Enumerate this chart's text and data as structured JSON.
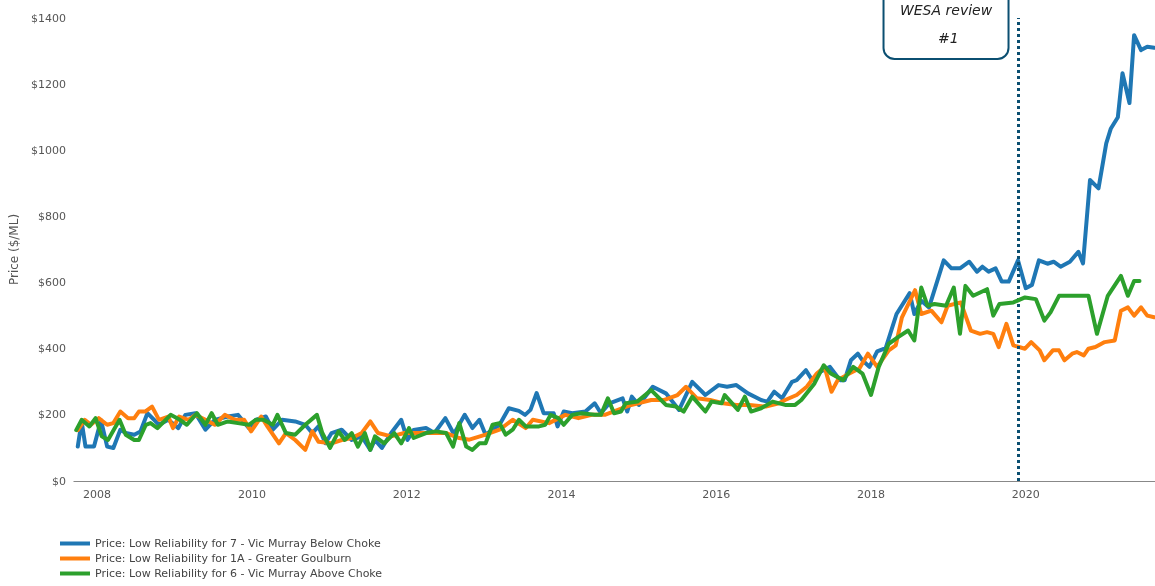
{
  "chart_data": {
    "type": "line",
    "ylabel": "Price ($/ML)",
    "xlim": [
      2007.7,
      2021.67
    ],
    "xticks": [
      2008,
      2010,
      2012,
      2014,
      2016,
      2018,
      2020
    ],
    "ylim": [
      0,
      1400
    ],
    "yticks": [
      {
        "value": 0,
        "label": "$0"
      },
      {
        "value": 200,
        "label": "$200"
      },
      {
        "value": 400,
        "label": "$400"
      },
      {
        "value": 600,
        "label": "$600"
      },
      {
        "value": 800,
        "label": "$800"
      },
      {
        "value": 1000,
        "label": "$1000"
      },
      {
        "value": 1200,
        "label": "$1200"
      },
      {
        "value": 1400,
        "label": "$1400"
      }
    ],
    "grid": false,
    "legend": "bottom left",
    "marker": "none",
    "line_style": "solid",
    "ref_lines": [
      {
        "axis": "x",
        "value": 2019.9,
        "label": "WESA review #1",
        "color": "#0b4f71",
        "line_style": "dotted"
      }
    ],
    "series": [
      {
        "name": "Price: Low Reliability for 7 - Vic Murray Below Choke",
        "color": "#1f77b4",
        "x": [
          2007.75,
          2007.8,
          2007.85,
          2007.96,
          2008.05,
          2008.13,
          2008.21,
          2008.3,
          2008.37,
          2008.48,
          2008.56,
          2008.65,
          2008.8,
          2008.92,
          2009.05,
          2009.14,
          2009.27,
          2009.4,
          2009.52,
          2009.69,
          2009.82,
          2009.96,
          2010.05,
          2010.18,
          2010.27,
          2010.39,
          2010.56,
          2010.69,
          2010.78,
          2010.86,
          2010.95,
          2011.03,
          2011.16,
          2011.29,
          2011.42,
          2011.53,
          2011.59,
          2011.68,
          2011.8,
          2011.93,
          2012.01,
          2012.09,
          2012.25,
          2012.36,
          2012.5,
          2012.61,
          2012.75,
          2012.85,
          2012.94,
          2013.02,
          2013.2,
          2013.32,
          2013.45,
          2013.53,
          2013.6,
          2013.68,
          2013.77,
          2013.9,
          2013.95,
          2014.03,
          2014.14,
          2014.31,
          2014.43,
          2014.51,
          2014.62,
          2014.79,
          2014.85,
          2014.91,
          2015.0,
          2015.18,
          2015.35,
          2015.52,
          2015.69,
          2015.86,
          2016.03,
          2016.14,
          2016.26,
          2016.41,
          2016.58,
          2016.66,
          2016.75,
          2016.85,
          2016.98,
          2017.04,
          2017.16,
          2017.24,
          2017.34,
          2017.47,
          2017.6,
          2017.66,
          2017.74,
          2017.83,
          2017.89,
          2017.98,
          2018.08,
          2018.19,
          2018.33,
          2018.5,
          2018.56,
          2018.65,
          2018.75,
          2018.94,
          2019.04,
          2019.15,
          2019.27,
          2019.37,
          2019.44,
          2019.52,
          2019.61,
          2019.69,
          2019.78,
          2019.9,
          2020.0,
          2020.08,
          2020.17,
          2020.28,
          2020.36,
          2020.45,
          2020.57,
          2020.68,
          2020.74,
          2020.83,
          2020.94,
          2021.04,
          2021.1,
          2021.19,
          2021.25,
          2021.34,
          2021.4,
          2021.49,
          2021.57,
          2021.66
        ],
        "values": [
          104,
          180,
          104,
          104,
          184,
          104,
          100,
          155,
          145,
          140,
          150,
          205,
          170,
          185,
          160,
          200,
          205,
          155,
          185,
          195,
          200,
          160,
          185,
          195,
          155,
          185,
          180,
          170,
          145,
          165,
          114,
          145,
          155,
          124,
          135,
          94,
          124,
          100,
          145,
          185,
          124,
          154,
          160,
          145,
          190,
          142,
          200,
          160,
          185,
          140,
          170,
          220,
          212,
          200,
          215,
          266,
          205,
          205,
          165,
          210,
          205,
          210,
          235,
          205,
          235,
          250,
          210,
          255,
          230,
          285,
          265,
          215,
          300,
          260,
          290,
          285,
          290,
          265,
          245,
          240,
          270,
          250,
          300,
          305,
          335,
          305,
          330,
          345,
          305,
          305,
          365,
          385,
          365,
          345,
          392,
          402,
          505,
          568,
          505,
          545,
          525,
          667,
          643,
          643,
          663,
          633,
          648,
          633,
          643,
          603,
          603,
          667,
          583,
          593,
          667,
          657,
          663,
          648,
          663,
          693,
          658,
          910,
          885,
          1021,
          1066,
          1100,
          1233,
          1143,
          1348,
          1303,
          1313,
          1310
        ]
      },
      {
        "name": "Price: Low Reliability for 1A - Greater Goulburn",
        "color": "#ff7f0e",
        "x": [
          2007.75,
          2007.84,
          2007.92,
          2008.02,
          2008.13,
          2008.21,
          2008.3,
          2008.4,
          2008.48,
          2008.54,
          2008.62,
          2008.71,
          2008.8,
          2008.92,
          2008.98,
          2009.06,
          2009.18,
          2009.27,
          2009.4,
          2009.52,
          2009.65,
          2009.78,
          2009.9,
          2009.99,
          2010.12,
          2010.2,
          2010.35,
          2010.44,
          2010.56,
          2010.69,
          2010.78,
          2010.86,
          2011.03,
          2011.16,
          2011.29,
          2011.42,
          2011.53,
          2011.63,
          2011.8,
          2011.97,
          2012.25,
          2012.51,
          2012.68,
          2012.81,
          2013.02,
          2013.2,
          2013.37,
          2013.54,
          2013.63,
          2013.84,
          2014.05,
          2014.22,
          2014.39,
          2014.56,
          2014.73,
          2014.9,
          2015.16,
          2015.33,
          2015.5,
          2015.61,
          2015.75,
          2015.92,
          2016.09,
          2016.26,
          2016.43,
          2016.64,
          2016.81,
          2016.89,
          2017.04,
          2017.17,
          2017.3,
          2017.4,
          2017.49,
          2017.57,
          2017.72,
          2017.85,
          2017.96,
          2018.08,
          2018.23,
          2018.32,
          2018.4,
          2018.57,
          2018.65,
          2018.78,
          2018.91,
          2018.99,
          2019.16,
          2019.29,
          2019.41,
          2019.5,
          2019.58,
          2019.65,
          2019.75,
          2019.84,
          2019.99,
          2020.07,
          2020.18,
          2020.24,
          2020.35,
          2020.43,
          2020.5,
          2020.6,
          2020.66,
          2020.75,
          2020.81,
          2020.9,
          2021.02,
          2021.15,
          2021.23,
          2021.32,
          2021.4,
          2021.49,
          2021.57,
          2021.66
        ],
        "values": [
          154,
          185,
          170,
          190,
          170,
          175,
          210,
          190,
          190,
          210,
          210,
          225,
          185,
          195,
          160,
          195,
          185,
          200,
          185,
          170,
          200,
          185,
          185,
          150,
          195,
          165,
          114,
          145,
          124,
          94,
          150,
          119,
          114,
          124,
          130,
          145,
          180,
          145,
          135,
          145,
          145,
          145,
          130,
          125,
          140,
          155,
          185,
          160,
          185,
          175,
          200,
          190,
          200,
          200,
          215,
          230,
          245,
          245,
          260,
          285,
          250,
          245,
          235,
          230,
          230,
          225,
          235,
          245,
          260,
          285,
          325,
          345,
          270,
          305,
          325,
          340,
          385,
          345,
          395,
          410,
          495,
          577,
          505,
          515,
          480,
          530,
          540,
          455,
          445,
          450,
          445,
          405,
          475,
          410,
          400,
          420,
          395,
          365,
          395,
          395,
          365,
          385,
          390,
          380,
          400,
          405,
          420,
          425,
          515,
          525,
          500,
          525,
          500,
          495
        ]
      },
      {
        "name": "Price: Low Reliability for 6 - Vic Murray Above Choke",
        "color": "#2ca02c",
        "x": [
          2007.73,
          2007.8,
          2007.9,
          2007.98,
          2008.06,
          2008.14,
          2008.29,
          2008.37,
          2008.48,
          2008.54,
          2008.63,
          2008.69,
          2008.78,
          2008.95,
          2009.07,
          2009.16,
          2009.29,
          2009.4,
          2009.48,
          2009.56,
          2009.69,
          2009.82,
          2009.96,
          2010.05,
          2010.15,
          2010.27,
          2010.33,
          2010.44,
          2010.56,
          2010.69,
          2010.84,
          2010.91,
          2011.01,
          2011.12,
          2011.2,
          2011.29,
          2011.37,
          2011.46,
          2011.53,
          2011.59,
          2011.71,
          2011.84,
          2011.93,
          2012.03,
          2012.09,
          2012.25,
          2012.38,
          2012.51,
          2012.6,
          2012.68,
          2012.77,
          2012.85,
          2012.94,
          2013.02,
          2013.11,
          2013.2,
          2013.28,
          2013.37,
          2013.45,
          2013.54,
          2013.71,
          2013.79,
          2013.86,
          2013.96,
          2014.03,
          2014.14,
          2014.26,
          2014.43,
          2014.51,
          2014.6,
          2014.68,
          2014.77,
          2014.83,
          2014.98,
          2015.16,
          2015.35,
          2015.48,
          2015.58,
          2015.69,
          2015.86,
          2015.94,
          2016.07,
          2016.11,
          2016.28,
          2016.37,
          2016.45,
          2016.58,
          2016.73,
          2016.89,
          2017.02,
          2017.1,
          2017.27,
          2017.39,
          2017.48,
          2017.64,
          2017.77,
          2017.89,
          2018.0,
          2018.1,
          2018.23,
          2018.35,
          2018.48,
          2018.56,
          2018.65,
          2018.73,
          2018.82,
          2018.97,
          2019.07,
          2019.15,
          2019.22,
          2019.32,
          2019.5,
          2019.58,
          2019.66,
          2019.84,
          2019.99,
          2020.13,
          2020.24,
          2020.32,
          2020.43,
          2020.81,
          2020.92,
          2021.06,
          2021.23,
          2021.32,
          2021.4,
          2021.47
        ],
        "values": [
          154,
          185,
          165,
          190,
          135,
          124,
          185,
          140,
          124,
          124,
          170,
          175,
          160,
          200,
          185,
          170,
          205,
          170,
          205,
          170,
          180,
          175,
          170,
          185,
          185,
          170,
          200,
          145,
          140,
          170,
          200,
          145,
          100,
          150,
          124,
          145,
          104,
          145,
          94,
          135,
          114,
          145,
          114,
          160,
          130,
          145,
          150,
          145,
          104,
          175,
          104,
          94,
          114,
          114,
          170,
          175,
          140,
          155,
          185,
          165,
          165,
          170,
          200,
          190,
          170,
          200,
          205,
          200,
          200,
          250,
          205,
          210,
          235,
          240,
          275,
          230,
          225,
          210,
          255,
          210,
          240,
          235,
          260,
          215,
          255,
          210,
          220,
          240,
          230,
          230,
          245,
          295,
          350,
          325,
          305,
          345,
          325,
          260,
          345,
          415,
          435,
          455,
          425,
          585,
          530,
          535,
          530,
          585,
          445,
          590,
          560,
          580,
          500,
          535,
          540,
          555,
          550,
          485,
          510,
          560,
          560,
          445,
          560,
          620,
          560,
          605,
          605
        ]
      }
    ]
  }
}
